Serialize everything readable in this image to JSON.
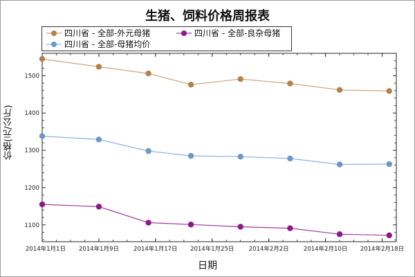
{
  "chart_data": {
    "type": "line",
    "title": "生猪、饲料价格周报表",
    "xlabel": "日期",
    "ylabel": "价格(元/公斤)",
    "x": [
      "2014-01-01",
      "2014-01-09",
      "2014-01-16",
      "2014-01-22",
      "2014-01-29",
      "2014-02-05",
      "2014-02-12",
      "2014-02-19"
    ],
    "x_ticks": [
      "2014年1月1日",
      "2014年1月9日",
      "2014年1月17日",
      "2014年1月25日",
      "2014年2月2日",
      "2014年2月10日",
      "2014年2月18日"
    ],
    "y_ticks": [
      "1100",
      "1200",
      "1300",
      "1400",
      "1500"
    ],
    "ylim": [
      1055,
      1560
    ],
    "grid": false,
    "legend": "top-left",
    "series": [
      {
        "name": "四川省 - 全部-外元母猪",
        "color": "#b5814a",
        "line_color": "#c9a27e",
        "values": [
          1545,
          1524,
          1506,
          1476,
          1491,
          1479,
          1462,
          1459
        ]
      },
      {
        "name": "四川省 - 全部-良杂母猪",
        "color": "#8e1a86",
        "line_color": "#a13c98",
        "values": [
          1155,
          1149,
          1106,
          1101,
          1095,
          1091,
          1075,
          1072
        ]
      },
      {
        "name": "四川省 - 全部-母猪均价",
        "color": "#6d96c9",
        "line_color": "#8fb0d8",
        "values": [
          1338,
          1329,
          1298,
          1285,
          1283,
          1278,
          1262,
          1263
        ]
      }
    ]
  }
}
